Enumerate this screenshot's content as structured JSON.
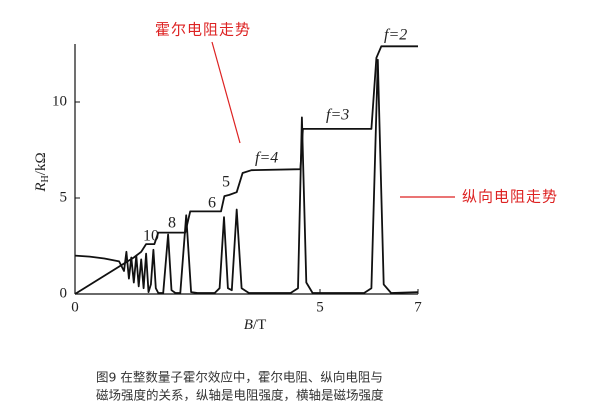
{
  "chart_data": {
    "type": "line",
    "xlabel": {
      "symbol": "B",
      "unit": "/T"
    },
    "ylabel": {
      "symbol": "R",
      "subscript": "H",
      "unit": "/kΩ"
    },
    "xlim": [
      0,
      7
    ],
    "xticks": [
      0,
      5,
      7
    ],
    "ylim": [
      0,
      13
    ],
    "yticks": [
      0,
      5,
      10
    ],
    "series": [
      {
        "name": "霍尔电阻",
        "color": "#111111",
        "x": [
          0,
          1.2,
          1.35,
          1.45,
          1.62,
          1.7,
          2.25,
          2.35,
          2.98,
          3.05,
          3.15,
          3.3,
          3.42,
          3.6,
          4.6,
          4.65,
          6.05,
          6.15,
          6.25,
          7.0
        ],
        "values": [
          0,
          1.9,
          2.2,
          2.6,
          2.6,
          3.2,
          3.2,
          4.3,
          4.3,
          5.1,
          5.16,
          5.3,
          6.3,
          6.45,
          6.5,
          8.6,
          8.6,
          12.3,
          12.9,
          12.9
        ]
      },
      {
        "name": "纵向电阻",
        "color": "#111111",
        "x": [
          0,
          0.3,
          0.6,
          0.9,
          1.0,
          1.05,
          1.1,
          1.15,
          1.2,
          1.25,
          1.3,
          1.35,
          1.4,
          1.45,
          1.5,
          1.55,
          1.6,
          1.65,
          1.7,
          1.8,
          1.9,
          1.97,
          2.05,
          2.15,
          2.27,
          2.37,
          2.5,
          2.85,
          2.95,
          3.04,
          3.12,
          3.2,
          3.3,
          3.4,
          3.55,
          4.4,
          4.55,
          4.63,
          4.72,
          4.85,
          5.9,
          6.05,
          6.18,
          6.3,
          6.45,
          7.0
        ],
        "values": [
          2.0,
          1.95,
          1.85,
          1.7,
          1.2,
          2.2,
          0.8,
          1.9,
          0.6,
          2.0,
          0.4,
          1.8,
          0.3,
          2.1,
          0.1,
          0.5,
          2.3,
          0.3,
          0.05,
          0.05,
          3.1,
          0.2,
          0.05,
          0.05,
          4.1,
          0.1,
          0.05,
          0.05,
          0.3,
          4.0,
          0.3,
          0.2,
          4.4,
          0.3,
          0.05,
          0.05,
          0.3,
          9.2,
          0.6,
          0.05,
          0.05,
          0.3,
          12.2,
          0.5,
          0.05,
          0.1
        ]
      }
    ],
    "plateau_labels": [
      "10",
      "8",
      "6",
      "5",
      "f=4",
      "f=3",
      "f=2"
    ],
    "annotations": [
      "霍尔电阻走势",
      "纵向电阻走势"
    ],
    "caption": [
      "图9 在整数量子霍尔效应中，霍尔电阻、纵向电阻与",
      "磁场强度的关系，纵轴是电阻强度，横轴是磁场强度"
    ]
  }
}
